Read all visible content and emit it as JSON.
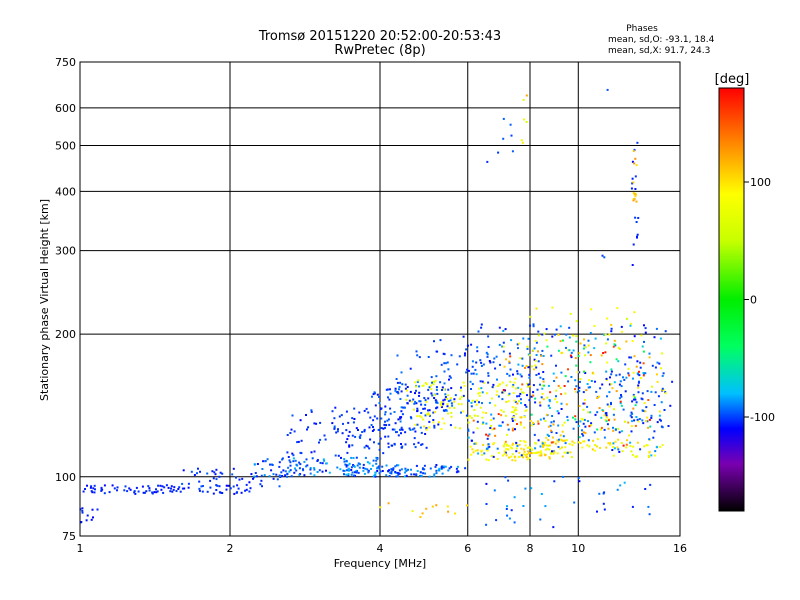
{
  "chart_data": {
    "type": "scatter",
    "title": "Tromsø 20151220 20:52:00-20:53:43",
    "subtitle": "RwPretec (8p)",
    "xlabel": "Frequency [MHz]",
    "ylabel": "Stationary phase Virtual Height [km]",
    "x_scale": "log",
    "y_scale": "log",
    "xlim": [
      1,
      16
    ],
    "ylim": [
      75,
      750
    ],
    "x_ticks": [
      1,
      2,
      4,
      6,
      8,
      10,
      16
    ],
    "y_ticks": [
      75,
      100,
      200,
      300,
      400,
      500,
      600,
      750
    ],
    "grid": true,
    "phase_stats": {
      "heading": "Phases",
      "line_o": "mean, sd,O: -93.1, 18.4",
      "line_x": "mean, sd,X:  91.7, 24.3"
    },
    "colorbar": {
      "label": "[deg]",
      "range": [
        -180,
        180
      ],
      "ticks": [
        100,
        0,
        -100
      ]
    },
    "phase_colors": {
      "-180": "#000000",
      "-140": "#7a00b0",
      "-110": "#0000ff",
      "-80": "#00c0ff",
      "-40": "#00ff60",
      "0": "#00ee00",
      "50": "#c8ff00",
      "90": "#ffff00",
      "130": "#ff9000",
      "180": "#ff0000"
    },
    "series": [
      {
        "clusters": [
          {
            "f": [
              1.0,
              2.2
            ],
            "h": [
              92,
              96
            ],
            "n": 90,
            "ph": [
              -110,
              -100
            ]
          },
          {
            "f": [
              1.0,
              1.1
            ],
            "h": [
              80,
              86
            ],
            "n": 12,
            "ph": [
              -110,
              -100
            ]
          },
          {
            "f": [
              1.6,
              2.6
            ],
            "h": [
              94,
              104
            ],
            "n": 50,
            "ph": [
              -110,
              -95
            ]
          },
          {
            "f": [
              2.2,
              4.0
            ],
            "h": [
              100,
              110
            ],
            "n": 120,
            "ph": [
              -110,
              -80
            ]
          },
          {
            "f": [
              3.5,
              6.0
            ],
            "h": [
              100,
              106
            ],
            "n": 110,
            "ph": [
              -110,
              -80
            ]
          },
          {
            "f": [
              2.6,
              4.2
            ],
            "h": [
              108,
              140
            ],
            "n": 70,
            "ph": [
              -110,
              -95
            ]
          },
          {
            "f": [
              3.8,
              5.6
            ],
            "h": [
              125,
              155
            ],
            "n": 110,
            "ph": [
              -110,
              -90
            ]
          },
          {
            "f": [
              3.2,
              5.0
            ],
            "h": [
              115,
              130
            ],
            "n": 60,
            "ph": [
              -110,
              -95
            ]
          },
          {
            "f": [
              4.3,
              6.0
            ],
            "h": [
              130,
              185
            ],
            "n": 45,
            "ph": [
              -110,
              -90
            ]
          },
          {
            "f": [
              4.5,
              8.0
            ],
            "h": [
              125,
              160
            ],
            "n": 120,
            "ph": [
              60,
              100
            ]
          },
          {
            "f": [
              6.0,
              9.0
            ],
            "h": [
              108,
              118
            ],
            "n": 80,
            "ph": [
              70,
              110
            ]
          },
          {
            "f": [
              5.0,
              8.5
            ],
            "h": [
              140,
              200
            ],
            "n": 90,
            "ph": [
              -110,
              -90
            ]
          },
          {
            "f": [
              7.0,
              14.0
            ],
            "h": [
              110,
              120
            ],
            "n": 90,
            "ph": [
              60,
              110
            ]
          },
          {
            "f": [
              6.0,
              15.0
            ],
            "h": [
              110,
              210
            ],
            "n": 280,
            "ph": [
              -110,
              -80
            ]
          },
          {
            "f": [
              7.0,
              15.0
            ],
            "h": [
              110,
              200
            ],
            "n": 170,
            "ph": [
              60,
              130
            ]
          },
          {
            "f": [
              6.0,
              14.0
            ],
            "h": [
              115,
              190
            ],
            "n": 45,
            "ph": [
              130,
              180
            ]
          },
          {
            "f": [
              8.0,
              14.0
            ],
            "h": [
              120,
              200
            ],
            "n": 40,
            "ph": [
              -80,
              -20
            ]
          },
          {
            "f": [
              10.0,
              15.5
            ],
            "h": [
              120,
              175
            ],
            "n": 60,
            "ph": [
              -110,
              -90
            ]
          },
          {
            "f": [
              8.0,
              13.0
            ],
            "h": [
              190,
              230
            ],
            "n": 20,
            "ph": [
              50,
              110
            ]
          },
          {
            "f": [
              6.5,
              14.0
            ],
            "h": [
              78,
              100
            ],
            "n": 40,
            "ph": [
              -110,
              -80
            ]
          },
          {
            "f": [
              4.0,
              6.0
            ],
            "h": [
              80,
              90
            ],
            "n": 12,
            "ph": [
              80,
              130
            ]
          },
          {
            "f": [
              6.4,
              6.7
            ],
            "h": [
              440,
              470
            ],
            "n": 1,
            "ph": [
              -105,
              -100
            ]
          },
          {
            "f": [
              6.9,
              7.4
            ],
            "h": [
              480,
              580
            ],
            "n": 6,
            "ph": [
              -105,
              -95
            ]
          },
          {
            "f": [
              7.7,
              7.9
            ],
            "h": [
              500,
              660
            ],
            "n": 6,
            "ph": [
              60,
              130
            ]
          },
          {
            "f": [
              12.8,
              13.2
            ],
            "h": [
              250,
              600
            ],
            "n": 16,
            "ph": [
              -110,
              -100
            ]
          },
          {
            "f": [
              12.9,
              13.1
            ],
            "h": [
              380,
              520
            ],
            "n": 14,
            "ph": [
              100,
              140
            ]
          },
          {
            "f": [
              11.4,
              11.6
            ],
            "h": [
              640,
              660
            ],
            "n": 1,
            "ph": [
              -100,
              -95
            ]
          },
          {
            "f": [
              11.0,
              11.3
            ],
            "h": [
              290,
              300
            ],
            "n": 2,
            "ph": [
              -105,
              -95
            ]
          }
        ]
      }
    ]
  }
}
